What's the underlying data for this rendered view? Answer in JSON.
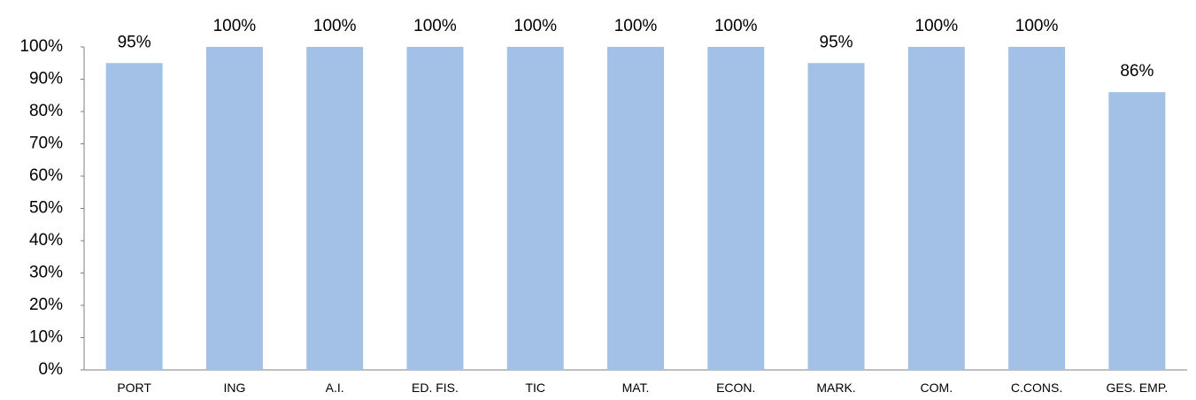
{
  "chart_data": {
    "type": "bar",
    "categories": [
      "PORT",
      "ING",
      "A.I.",
      "ED. FIS.",
      "TIC",
      "MAT.",
      "ECON.",
      "MARK.",
      "COM.",
      "C.CONS.",
      "GES. EMP."
    ],
    "values": [
      95,
      100,
      100,
      100,
      100,
      100,
      100,
      95,
      100,
      100,
      86
    ],
    "data_labels": [
      "95%",
      "100%",
      "100%",
      "100%",
      "100%",
      "100%",
      "100%",
      "95%",
      "100%",
      "100%",
      "86%"
    ],
    "y_ticks": [
      "0%",
      "10%",
      "20%",
      "30%",
      "40%",
      "50%",
      "60%",
      "70%",
      "80%",
      "90%",
      "100%"
    ],
    "ylim": [
      0,
      100
    ],
    "title": "",
    "xlabel": "",
    "ylabel": "",
    "grid": false,
    "legend": "none",
    "bar_color": "#a3c1e6",
    "axis_color": "#7f7f7f"
  }
}
